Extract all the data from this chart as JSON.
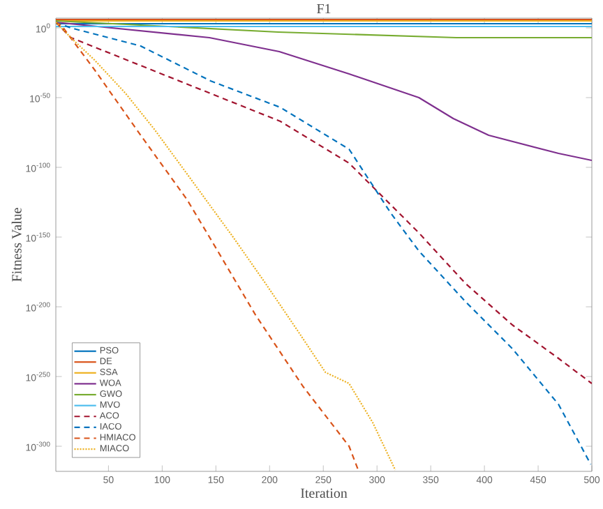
{
  "chart_data": {
    "type": "line",
    "title": "F1",
    "xlabel": "Iteration",
    "ylabel": "Fitness Value",
    "log": "y",
    "legend": "bottom left",
    "xlim": [
      1,
      500
    ],
    "xticks": [
      50,
      100,
      150,
      200,
      250,
      300,
      350,
      400,
      450,
      500
    ],
    "ylim": [
      1e-318,
      10000000.0
    ],
    "yticks": [
      {
        "value": 1e-300,
        "label": "10$^{-300}$"
      },
      {
        "value": 1e-250,
        "label": "10$^{-250}$"
      },
      {
        "value": 1e-200,
        "label": "10$^{-200}$"
      },
      {
        "value": 1e-150,
        "label": "10$^{-150}$"
      },
      {
        "value": 1e-100,
        "label": "10$^{-100}$"
      },
      {
        "value": 1e-50,
        "label": "10$^{-50}$"
      },
      {
        "value": 1,
        "label": "10$^{0}$"
      }
    ],
    "series": [
      {
        "name": "PSO",
        "color": "#0072bd",
        "line_style": "solid",
        "x": [
          1,
          500
        ],
        "values": [
          1000.0,
          1000.0
        ]
      },
      {
        "name": "DE",
        "color": "#d95319",
        "line_style": "solid",
        "x": [
          1,
          500
        ],
        "values": [
          1000000.0,
          1000000.0
        ]
      },
      {
        "name": "SSA",
        "color": "#edb120",
        "line_style": "solid",
        "x": [
          1,
          500
        ],
        "values": [
          100000.0,
          100000.0
        ]
      },
      {
        "name": "WOA",
        "color": "#7e2f8e",
        "line_style": "solid",
        "x": [
          1,
          144,
          209,
          274,
          339,
          371,
          404,
          469,
          500
        ],
        "values": [
          10000.0,
          1e-07,
          1e-17,
          1e-33,
          1e-50,
          1e-65,
          1e-77,
          1e-90,
          1e-95
        ]
      },
      {
        "name": "GWO",
        "color": "#77ac30",
        "line_style": "solid",
        "x": [
          1,
          80,
          208,
          374,
          500
        ],
        "values": [
          100000.0,
          100.0,
          0.001,
          1e-07,
          1e-07
        ]
      },
      {
        "name": "MVO",
        "color": "#4dbeee",
        "line_style": "solid",
        "x": [
          1,
          500
        ],
        "values": [
          10.0,
          10.0
        ]
      },
      {
        "name": "ACO",
        "color": "#a2142f",
        "line_style": "dashed",
        "x": [
          1,
          15,
          80,
          145,
          210,
          274,
          339,
          382,
          426,
          469,
          500
        ],
        "values": [
          10000.0,
          1e-07,
          1e-27,
          1e-47,
          1e-67,
          1e-97,
          1e-147,
          1e-183,
          1e-213,
          1e-237,
          1e-255
        ]
      },
      {
        "name": "IACO",
        "color": "#0072bd",
        "line_style": "dashed",
        "x": [
          1,
          15,
          80,
          145,
          210,
          274,
          313,
          339,
          382,
          426,
          469,
          499
        ],
        "values": [
          10000.0,
          1,
          1e-13,
          1e-38,
          1e-57,
          1e-87,
          1e-133,
          1e-160,
          1e-196,
          1e-230,
          1e-270,
          1e-313
        ]
      },
      {
        "name": "HMIACO",
        "color": "#d95319",
        "line_style": "dashed",
        "x": [
          1,
          6,
          37,
          80,
          123,
          144,
          187,
          231,
          274,
          283
        ],
        "values": [
          10000.0,
          100.0,
          1e-30,
          1e-77,
          1e-123,
          1e-150,
          1e-206,
          1e-257,
          1e-300,
          1e-318
        ]
      },
      {
        "name": "MIACO",
        "color": "#edb120",
        "line_style": "dotted",
        "x": [
          1,
          15,
          37,
          66,
          93,
          131,
          166,
          196,
          226,
          252,
          274,
          296,
          317
        ],
        "values": [
          10000.0,
          1e-07,
          1e-23,
          1e-47,
          1e-73,
          1e-113,
          1e-150,
          1e-183,
          1e-217,
          1e-247,
          1e-255,
          1e-283,
          1e-317
        ]
      }
    ]
  }
}
